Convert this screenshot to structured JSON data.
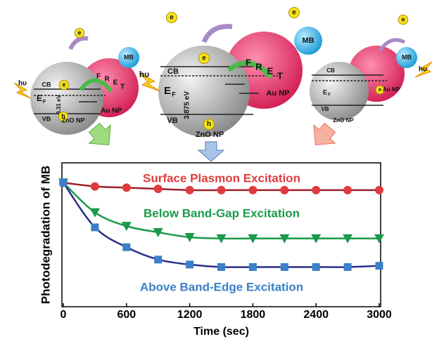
{
  "chart_data": {
    "type": "line",
    "xlabel": "Time (sec)",
    "ylabel": "Photodegradation of MB",
    "x": [
      0,
      300,
      600,
      900,
      1200,
      1500,
      1800,
      2100,
      2400,
      2700,
      3000
    ],
    "xlim": [
      0,
      3000
    ],
    "xticks": [
      0,
      600,
      1200,
      1800,
      2400,
      3000
    ],
    "ylim": [
      0,
      1.16
    ],
    "series": [
      {
        "name": "Surface Plasmon Excitation",
        "color": "#e03a3e",
        "line_color": "#9e1f2a",
        "marker": "circle",
        "values": [
          1,
          0.97,
          0.96,
          0.95,
          0.94,
          0.94,
          0.94,
          0.94,
          0.94,
          0.94,
          0.94
        ]
      },
      {
        "name": "Below Band-Gap Excitation",
        "color": "#1a9a4a",
        "line_color": "#1a9a4a",
        "marker": "triangle-down",
        "values": [
          1,
          0.76,
          0.65,
          0.6,
          0.56,
          0.55,
          0.55,
          0.55,
          0.55,
          0.55,
          0.55
        ]
      },
      {
        "name": "Above Band-Edge Excitation",
        "color": "#3b80c8",
        "line_color": "#2b2e8a",
        "marker": "square",
        "values": [
          1,
          0.64,
          0.48,
          0.38,
          0.34,
          0.32,
          0.32,
          0.32,
          0.32,
          0.32,
          0.33
        ]
      }
    ]
  },
  "diagrams": [
    {
      "texts": [
        "e",
        "e",
        "CB",
        "E",
        "F",
        "3.31 eV",
        "h",
        "VB",
        "ZnO NP",
        "Au NP",
        "MB",
        "F",
        "R",
        "E",
        "T",
        "hυ"
      ]
    },
    {
      "texts": [
        "e",
        "e",
        "e",
        "CB",
        "E",
        "F",
        "3.875 eV",
        "h",
        "VB",
        "ZnO NP",
        "Au NP",
        "MB",
        "F",
        "R",
        "E",
        "T",
        "hυ"
      ]
    },
    {
      "texts": [
        "e",
        "e",
        "CB",
        "E",
        "F",
        "VB",
        "ZnO NP",
        "Au NP",
        "MB",
        "hυ"
      ]
    }
  ]
}
